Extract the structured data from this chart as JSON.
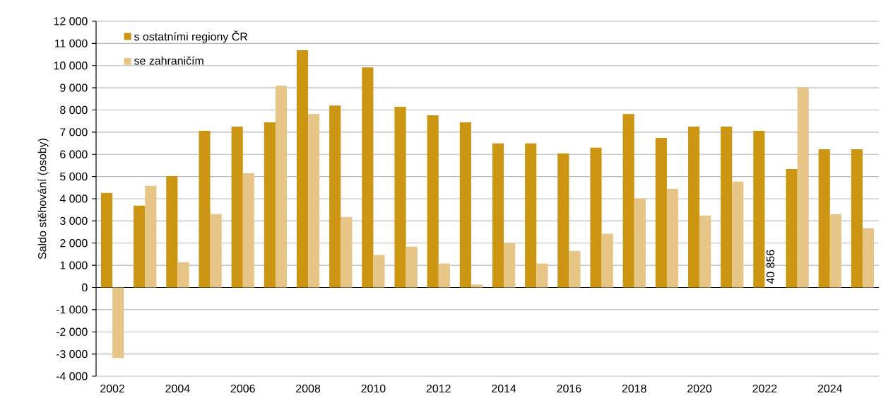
{
  "chart_data": {
    "type": "bar",
    "ylabel": "Saldo stěhování (osoby)",
    "categories": [
      "2002",
      null,
      "2004",
      null,
      "2006",
      null,
      "2008",
      null,
      "2010",
      null,
      "2012",
      null,
      "2014",
      null,
      "2016",
      null,
      "2018",
      null,
      "2020",
      null,
      "2022",
      null,
      "2024",
      null
    ],
    "series": [
      {
        "name": "s ostatními regiony ČR",
        "color": "#cc9612",
        "values": [
          4260,
          3690,
          5020,
          7060,
          7250,
          7440,
          10690,
          8200,
          9920,
          8140,
          7760,
          7440,
          6490,
          6490,
          6040,
          6300,
          7820,
          6740,
          7250,
          7250,
          7060,
          5340,
          6230,
          6230
        ]
      },
      {
        "name": "se zahraničím",
        "color": "#e6c587",
        "values": [
          -3180,
          4580,
          1140,
          3310,
          5150,
          9090,
          7820,
          3180,
          1460,
          1840,
          1080,
          130,
          2010,
          1080,
          1650,
          2420,
          4010,
          4450,
          3240,
          4770,
          null,
          9030,
          3310,
          2670
        ],
        "value_labels": [
          null,
          null,
          null,
          null,
          null,
          null,
          null,
          null,
          null,
          null,
          null,
          null,
          null,
          null,
          null,
          null,
          null,
          null,
          null,
          null,
          "40 856",
          null,
          null,
          null
        ]
      }
    ],
    "ylim": [
      -4000,
      12000
    ],
    "yticks": [
      {
        "value": -4000,
        "label": "-4 000"
      },
      {
        "value": -3000,
        "label": "-3 000"
      },
      {
        "value": -2000,
        "label": "-2 000"
      },
      {
        "value": -1000,
        "label": "-1 000"
      },
      0,
      {
        "value": 1000,
        "label": "1 000"
      },
      {
        "value": 2000,
        "label": "2 000"
      },
      {
        "value": 3000,
        "label": "3 000"
      },
      {
        "value": 4000,
        "label": "4 000"
      },
      {
        "value": 5000,
        "label": "5 000"
      },
      {
        "value": 6000,
        "label": "6 000"
      },
      {
        "value": 7000,
        "label": "7 000"
      },
      {
        "value": 8000,
        "label": "8 000"
      },
      {
        "value": 9000,
        "label": "9 000"
      },
      {
        "value": 10000,
        "label": "10 000"
      },
      {
        "value": 11000,
        "label": "11 000"
      },
      {
        "value": 12000,
        "label": "12 000"
      }
    ],
    "grid": "y",
    "legend": "top left"
  }
}
